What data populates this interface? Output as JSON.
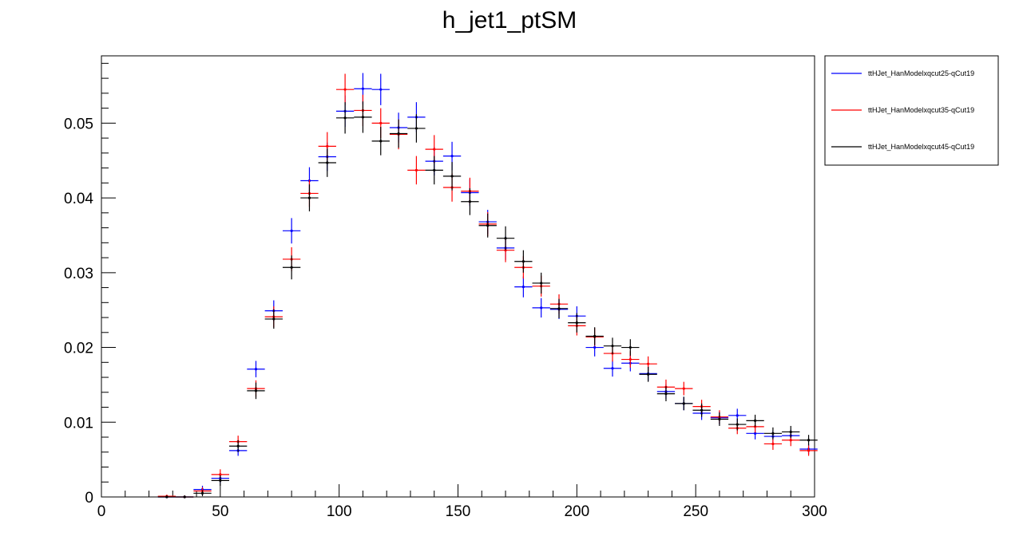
{
  "chart_data": {
    "type": "scatter",
    "title": "h_jet1_ptSM",
    "xlabel": "",
    "ylabel": "",
    "xlim": [
      0,
      300
    ],
    "ylim": [
      0,
      0.059
    ],
    "grid": false,
    "legend_position": "top-right-outside",
    "x_ticks": [
      {
        "value": 0,
        "label": "0"
      },
      {
        "value": 50,
        "label": "50"
      },
      {
        "value": 100,
        "label": "100"
      },
      {
        "value": 150,
        "label": "150"
      },
      {
        "value": 200,
        "label": "200"
      },
      {
        "value": 250,
        "label": "250"
      },
      {
        "value": 300,
        "label": "300"
      }
    ],
    "y_ticks": [
      {
        "value": 0,
        "label": "0"
      },
      {
        "value": 0.01,
        "label": "0.01"
      },
      {
        "value": 0.02,
        "label": "0.02"
      },
      {
        "value": 0.03,
        "label": "0.03"
      },
      {
        "value": 0.04,
        "label": "0.04"
      },
      {
        "value": 0.05,
        "label": "0.05"
      }
    ],
    "x": [
      27.5,
      35,
      42.5,
      50,
      57.5,
      65,
      72.5,
      80,
      87.5,
      95,
      102.5,
      110,
      117.5,
      125,
      132.5,
      140,
      147.5,
      155,
      162.5,
      170,
      177.5,
      185,
      192.5,
      200,
      207.5,
      215,
      222.5,
      230,
      237.5,
      245,
      252.5,
      260,
      267.5,
      275,
      282.5,
      290,
      297.5
    ],
    "x_half_width": 3.75,
    "series": [
      {
        "name": "ttHJet_HanModelxqcut25-qCut19",
        "color": "#0000ff",
        "values": [
          0.0,
          0.0,
          0.001,
          0.0025,
          0.0062,
          0.0171,
          0.0249,
          0.0356,
          0.0423,
          0.0455,
          0.0516,
          0.0546,
          0.0545,
          0.0494,
          0.0508,
          0.0449,
          0.0456,
          0.0407,
          0.0368,
          0.0333,
          0.0281,
          0.0253,
          0.0251,
          0.0242,
          0.02,
          0.0172,
          0.0179,
          0.0165,
          0.0141,
          0.0125,
          0.0112,
          0.0106,
          0.0109,
          0.0085,
          0.0081,
          0.0082,
          0.0064
        ],
        "errors": [
          0.0002,
          0.0002,
          0.0005,
          0.0007,
          0.0007,
          0.0011,
          0.0014,
          0.0017,
          0.0018,
          0.0019,
          0.0021,
          0.0021,
          0.0021,
          0.002,
          0.002,
          0.0019,
          0.0019,
          0.0018,
          0.0016,
          0.0016,
          0.0014,
          0.0013,
          0.0013,
          0.0013,
          0.0012,
          0.0011,
          0.0011,
          0.001,
          0.001,
          0.0009,
          0.0009,
          0.0009,
          0.0009,
          0.0008,
          0.0008,
          0.0008,
          0.0007
        ]
      },
      {
        "name": "ttHJet_HanModelxqcut35-qCut19",
        "color": "#ff0000",
        "values": [
          0.0001,
          0.0,
          0.0008,
          0.003,
          0.0074,
          0.0145,
          0.0241,
          0.0318,
          0.0406,
          0.0469,
          0.0545,
          0.0517,
          0.05,
          0.0485,
          0.0437,
          0.0465,
          0.0414,
          0.0409,
          0.0365,
          0.033,
          0.0307,
          0.0282,
          0.0258,
          0.0229,
          0.0214,
          0.0192,
          0.0184,
          0.0178,
          0.0147,
          0.0145,
          0.0121,
          0.0107,
          0.0092,
          0.0094,
          0.0071,
          0.0076,
          0.0062
        ],
        "errors": [
          0.0002,
          0.0002,
          0.0005,
          0.0007,
          0.0008,
          0.0011,
          0.0014,
          0.0016,
          0.0018,
          0.0019,
          0.0021,
          0.0021,
          0.002,
          0.002,
          0.0019,
          0.0019,
          0.0019,
          0.0018,
          0.0016,
          0.0016,
          0.0015,
          0.0014,
          0.0013,
          0.0013,
          0.0012,
          0.0011,
          0.0011,
          0.001,
          0.001,
          0.0009,
          0.0009,
          0.0009,
          0.0008,
          0.0008,
          0.0008,
          0.0008,
          0.0007
        ]
      },
      {
        "name": "ttHJet_HanModelxqcut45-qCut19",
        "color": "#000000",
        "values": [
          0.0,
          0.0,
          0.0005,
          0.0022,
          0.0068,
          0.0142,
          0.0238,
          0.0307,
          0.04,
          0.0447,
          0.0507,
          0.0508,
          0.0476,
          0.0486,
          0.0493,
          0.0437,
          0.0429,
          0.0395,
          0.0363,
          0.0346,
          0.0315,
          0.0286,
          0.0252,
          0.0233,
          0.0215,
          0.0202,
          0.02,
          0.0164,
          0.0138,
          0.0125,
          0.0116,
          0.0104,
          0.0097,
          0.0102,
          0.0085,
          0.0087,
          0.0076
        ],
        "errors": [
          0.0002,
          0.0002,
          0.0004,
          0.0007,
          0.0008,
          0.0011,
          0.0013,
          0.0016,
          0.0018,
          0.0019,
          0.0021,
          0.0021,
          0.0019,
          0.0019,
          0.0019,
          0.0019,
          0.0019,
          0.0018,
          0.0016,
          0.0016,
          0.0015,
          0.0014,
          0.0013,
          0.0013,
          0.0012,
          0.0011,
          0.0011,
          0.001,
          0.001,
          0.0009,
          0.0009,
          0.0009,
          0.0008,
          0.0008,
          0.0008,
          0.0008,
          0.0007
        ]
      }
    ]
  }
}
